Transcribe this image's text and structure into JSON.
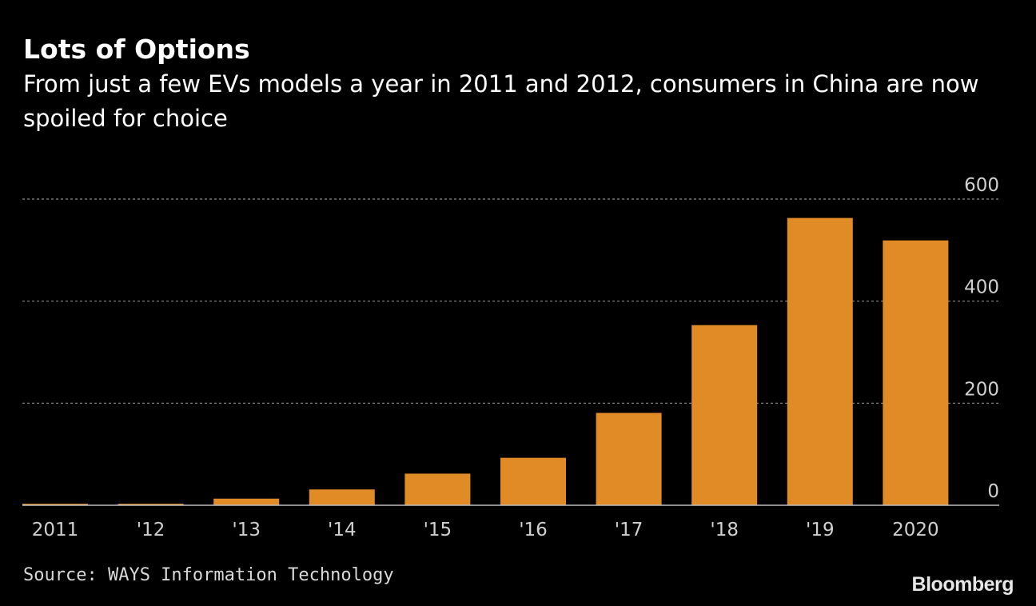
{
  "header": {
    "title": "Lots of Options",
    "subtitle": "From just a few EVs models a year in 2011 and 2012, consumers in China are now spoiled for choice"
  },
  "footer": {
    "source": "Source: WAYS Information Technology",
    "brand": "Bloomberg"
  },
  "colors": {
    "background": "#000000",
    "bar": "#e08b26",
    "grid": "#8c8c8c",
    "text": "#ffffff",
    "axis_text": "#d0d0d0"
  },
  "chart_data": {
    "type": "bar",
    "categories": [
      "2011",
      "'12",
      "'13",
      "'14",
      "'15",
      "'16",
      "'17",
      "'18",
      "'19",
      "2020"
    ],
    "values": [
      3,
      3,
      13,
      31,
      62,
      93,
      181,
      353,
      563,
      519
    ],
    "ylim": [
      0,
      600
    ],
    "yticks": [
      0,
      200,
      400,
      600
    ],
    "ytick_labels": [
      "0",
      "200",
      "400",
      "600"
    ],
    "y_axis_position": "right",
    "grid": true,
    "grid_style": "dotted",
    "legend": "none"
  }
}
